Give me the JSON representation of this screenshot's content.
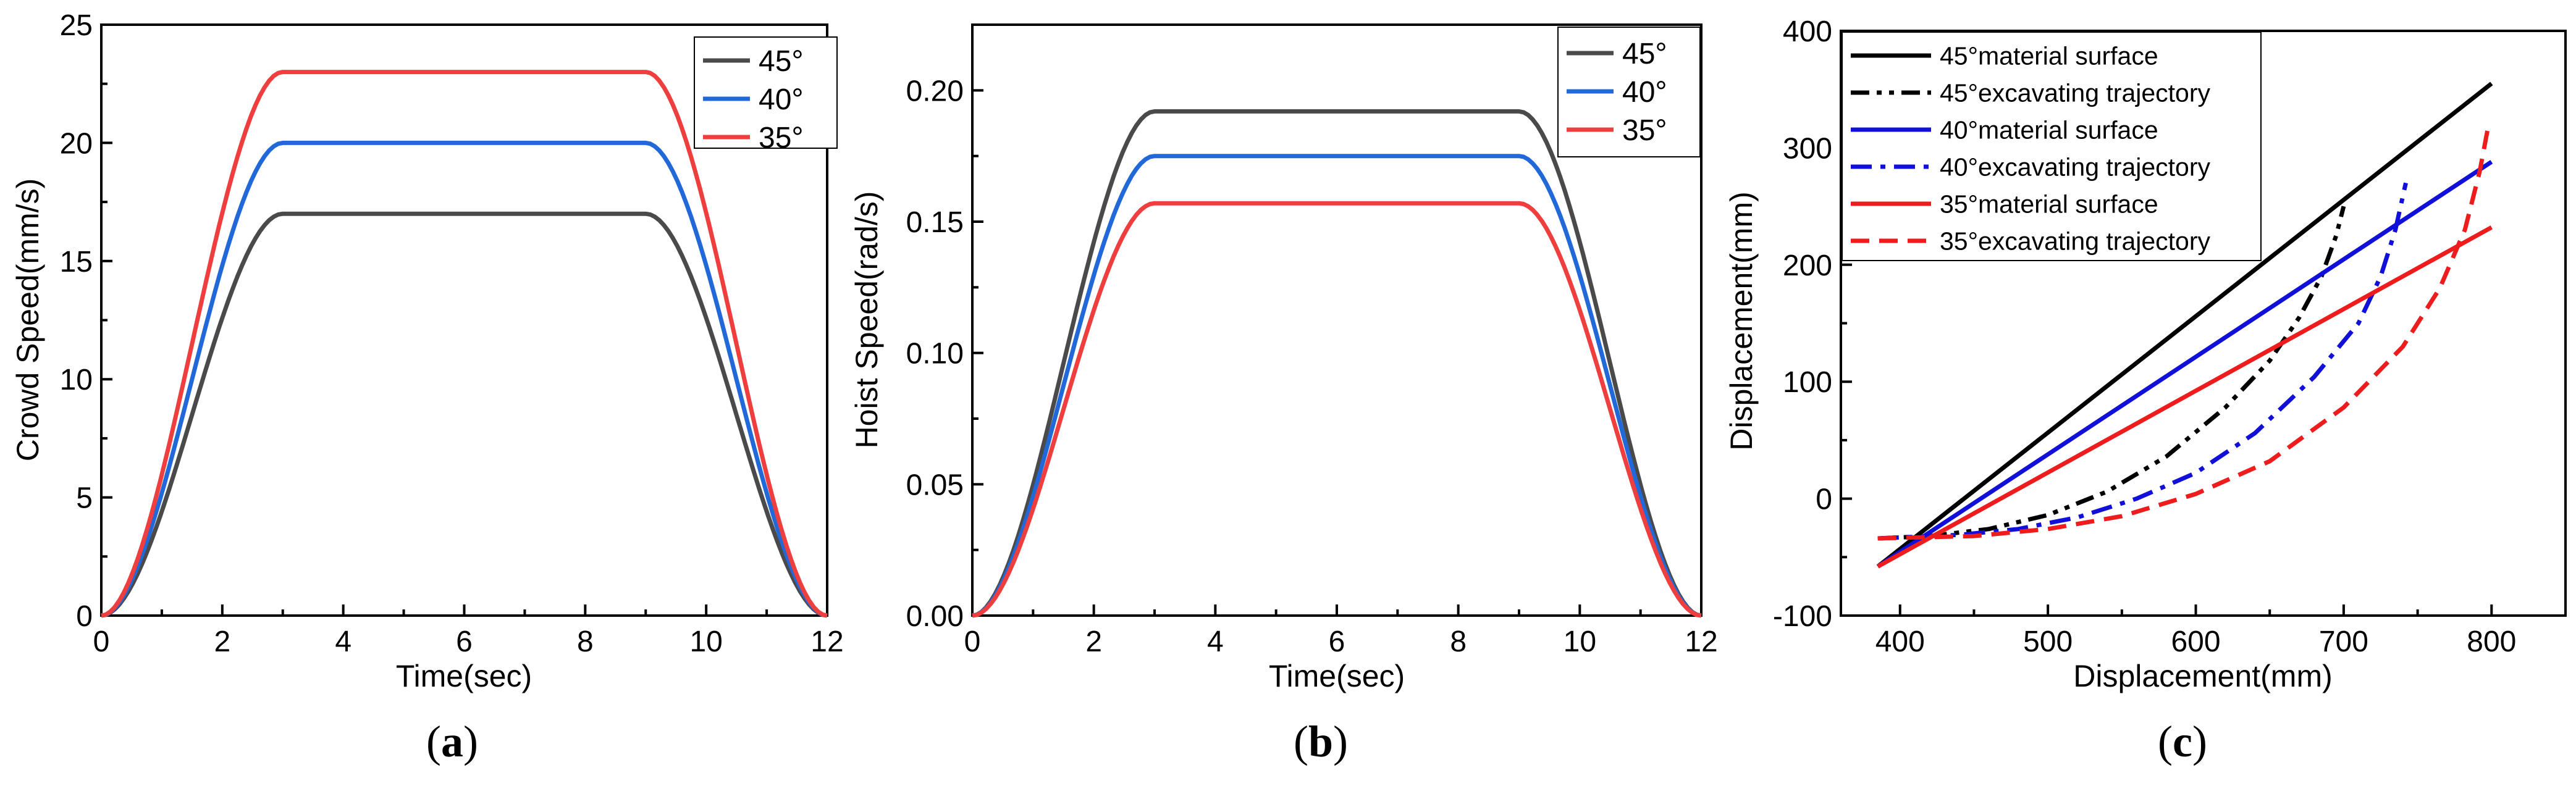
{
  "chart_data": [
    {
      "type": "line",
      "panel": "a",
      "caption_open": "(",
      "caption_letter": "a",
      "caption_close": ")",
      "xlabel": "Time(sec)",
      "ylabel": "Crowd Speed(mm/s)",
      "xlim": [
        0,
        12
      ],
      "ylim": [
        0,
        25
      ],
      "xticks": [
        "0",
        "2",
        "4",
        "6",
        "8",
        "10",
        "12"
      ],
      "yticks": [
        "0",
        "5",
        "10",
        "15",
        "20",
        "25"
      ],
      "legend_position": "top-right",
      "series": [
        {
          "name": "45°",
          "color": "#4a4a4a",
          "dash": "solid",
          "shape": "trapezoid",
          "points": [
            [
              0,
              0
            ],
            [
              3,
              17
            ],
            [
              9,
              17
            ],
            [
              12,
              0
            ]
          ]
        },
        {
          "name": "40°",
          "color": "#2168d8",
          "dash": "solid",
          "shape": "trapezoid",
          "points": [
            [
              0,
              0
            ],
            [
              3,
              20
            ],
            [
              9,
              20
            ],
            [
              12,
              0
            ]
          ]
        },
        {
          "name": "35°",
          "color": "#ee3e3e",
          "dash": "solid",
          "shape": "trapezoid",
          "points": [
            [
              0,
              0
            ],
            [
              3,
              23
            ],
            [
              9,
              23
            ],
            [
              12,
              0
            ]
          ]
        }
      ]
    },
    {
      "type": "line",
      "panel": "b",
      "caption_open": "(",
      "caption_letter": "b",
      "caption_close": ")",
      "xlabel": "Time(sec)",
      "ylabel": "Hoist Speed(rad/s)",
      "xlim": [
        0,
        12
      ],
      "ylim": [
        0,
        0.225
      ],
      "xticks": [
        "0",
        "2",
        "4",
        "6",
        "8",
        "10",
        "12"
      ],
      "yticks": [
        "0.00",
        "0.05",
        "0.10",
        "0.15",
        "0.20"
      ],
      "legend_position": "top-right",
      "series": [
        {
          "name": "45°",
          "color": "#4a4a4a",
          "dash": "solid",
          "shape": "trapezoid",
          "points": [
            [
              0,
              0
            ],
            [
              3,
              0.192
            ],
            [
              9,
              0.192
            ],
            [
              12,
              0
            ]
          ]
        },
        {
          "name": "40°",
          "color": "#2168d8",
          "dash": "solid",
          "shape": "trapezoid",
          "points": [
            [
              0,
              0
            ],
            [
              3,
              0.175
            ],
            [
              9,
              0.175
            ],
            [
              12,
              0
            ]
          ]
        },
        {
          "name": "35°",
          "color": "#ee3e3e",
          "dash": "solid",
          "shape": "trapezoid",
          "points": [
            [
              0,
              0
            ],
            [
              3,
              0.157
            ],
            [
              9,
              0.157
            ],
            [
              12,
              0
            ]
          ]
        }
      ]
    },
    {
      "type": "line",
      "panel": "c",
      "caption_open": "(",
      "caption_letter": "c",
      "caption_close": ")",
      "xlabel": "Displacement(mm)",
      "ylabel": "Displacement(mm)",
      "xlim": [
        360,
        850
      ],
      "ylim": [
        -100,
        400
      ],
      "xticks": [
        "400",
        "500",
        "600",
        "700",
        "800"
      ],
      "yticks": [
        "-100",
        "0",
        "100",
        "200",
        "300",
        "400"
      ],
      "legend_position": "top-left",
      "series": [
        {
          "name": "45°material surface",
          "color": "#000000",
          "dash": "solid",
          "shape": "polyline",
          "points": [
            [
              385,
              -58
            ],
            [
              800,
              355
            ]
          ]
        },
        {
          "name": "45°excavating trajectory",
          "color": "#000000",
          "dash": "dashdotdot",
          "shape": "polyline",
          "points": [
            [
              385,
              -34
            ],
            [
              420,
              -32
            ],
            [
              460,
              -26
            ],
            [
              500,
              -14
            ],
            [
              540,
              6
            ],
            [
              580,
              36
            ],
            [
              620,
              78
            ],
            [
              650,
              118
            ],
            [
              670,
              155
            ],
            [
              685,
              190
            ],
            [
              695,
              225
            ],
            [
              700,
              250
            ]
          ]
        },
        {
          "name": "40°material surface",
          "color": "#1010d8",
          "dash": "solid",
          "shape": "polyline",
          "points": [
            [
              385,
              -58
            ],
            [
              800,
              288
            ]
          ]
        },
        {
          "name": "40°excavating trajectory",
          "color": "#1010d8",
          "dash": "dashdot",
          "shape": "polyline",
          "points": [
            [
              385,
              -34
            ],
            [
              440,
              -31
            ],
            [
              480,
              -26
            ],
            [
              520,
              -16
            ],
            [
              560,
              0
            ],
            [
              600,
              22
            ],
            [
              640,
              56
            ],
            [
              680,
              104
            ],
            [
              710,
              150
            ],
            [
              725,
              190
            ],
            [
              735,
              230
            ],
            [
              742,
              270
            ]
          ]
        },
        {
          "name": "35°material surface",
          "color": "#ee1c1c",
          "dash": "solid",
          "shape": "polyline",
          "points": [
            [
              385,
              -58
            ],
            [
              800,
              232
            ]
          ]
        },
        {
          "name": "35°excavating trajectory",
          "color": "#ee1c1c",
          "dash": "dashed",
          "shape": "polyline",
          "points": [
            [
              385,
              -34
            ],
            [
              450,
              -32
            ],
            [
              500,
              -26
            ],
            [
              550,
              -15
            ],
            [
              600,
              4
            ],
            [
              650,
              32
            ],
            [
              700,
              78
            ],
            [
              740,
              130
            ],
            [
              765,
              180
            ],
            [
              782,
              230
            ],
            [
              792,
              280
            ],
            [
              798,
              320
            ]
          ]
        }
      ]
    }
  ]
}
